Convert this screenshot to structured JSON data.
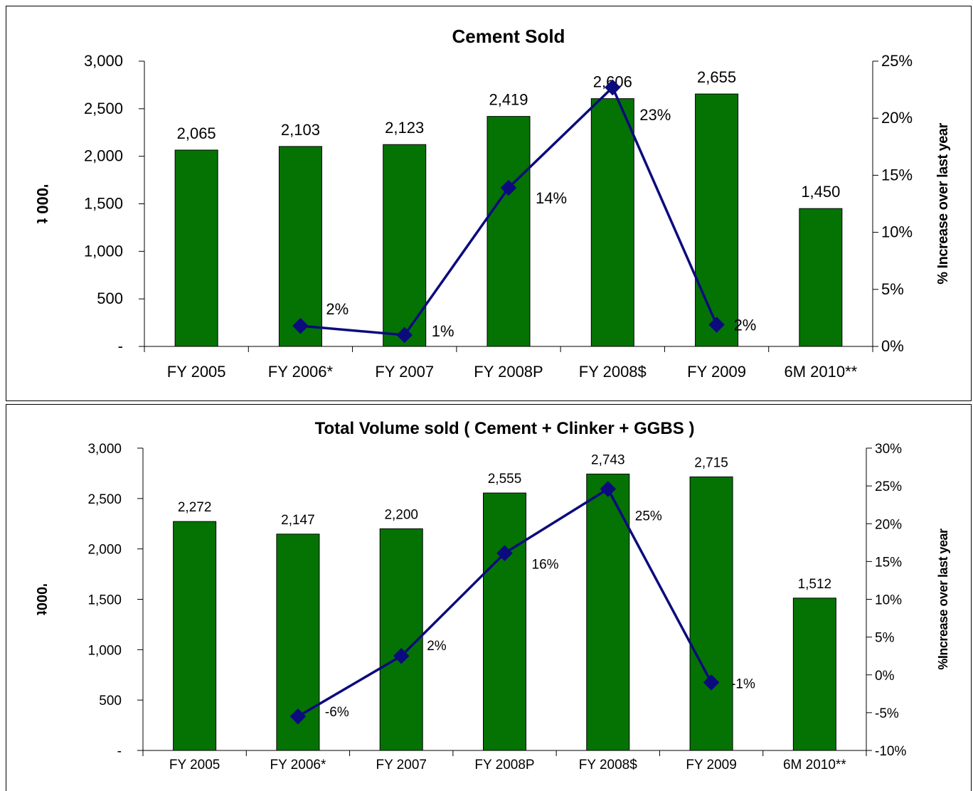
{
  "colors": {
    "bar_fill": "#047304",
    "bar_stroke": "#000000",
    "line": "#0b0b7d"
  },
  "chart_data": [
    {
      "type": "bar",
      "title": "Cement Sold",
      "ylabel": "'000 t",
      "y2label": "% Increase over last year",
      "categories": [
        "FY 2005",
        "FY 2006*",
        "FY 2007",
        "FY 2008P",
        "FY 2008$",
        "FY 2009",
        "6M 2010**"
      ],
      "ylim": [
        0,
        3000
      ],
      "y2lim": [
        0,
        0.25
      ],
      "yticks": [
        0,
        500,
        1000,
        1500,
        2000,
        2500,
        3000
      ],
      "ytick_labels": [
        "-",
        "500",
        "1,000",
        "1,500",
        "2,000",
        "2,500",
        "3,000"
      ],
      "y2ticks": [
        0,
        0.05,
        0.1,
        0.15,
        0.2,
        0.25
      ],
      "y2tick_labels": [
        "0%",
        "5%",
        "10%",
        "15%",
        "20%",
        "25%"
      ],
      "series": [
        {
          "type": "bar",
          "values": [
            2065,
            2103,
            2123,
            2419,
            2606,
            2655,
            1450
          ],
          "labels": [
            "2,065",
            "2,103",
            "2,123",
            "2,419",
            "2,606",
            "2,655",
            "1,450"
          ]
        },
        {
          "type": "line",
          "axis": "right",
          "values": [
            null,
            0.018,
            0.01,
            0.139,
            0.227,
            0.019,
            null
          ],
          "labels": [
            "",
            "2%",
            "1%",
            "14%",
            "23%",
            "2%",
            ""
          ]
        }
      ]
    },
    {
      "type": "bar",
      "title": "Total Volume sold ( Cement + Clinker + GGBS )",
      "ylabel": "'000t",
      "y2label": "%Increase over last year",
      "categories": [
        "FY 2005",
        "FY 2006*",
        "FY 2007",
        "FY 2008P",
        "FY 2008$",
        "FY 2009",
        "6M 2010**"
      ],
      "ylim": [
        0,
        3000
      ],
      "y2lim": [
        -0.1,
        0.3
      ],
      "yticks": [
        0,
        500,
        1000,
        1500,
        2000,
        2500,
        3000
      ],
      "ytick_labels": [
        "-",
        "500",
        "1,000",
        "1,500",
        "2,000",
        "2,500",
        "3,000"
      ],
      "y2ticks": [
        -0.1,
        -0.05,
        0,
        0.05,
        0.1,
        0.15,
        0.2,
        0.25,
        0.3
      ],
      "y2tick_labels": [
        "-10%",
        "-5%",
        "0%",
        "5%",
        "10%",
        "15%",
        "20%",
        "25%",
        "30%"
      ],
      "series": [
        {
          "type": "bar",
          "values": [
            2272,
            2147,
            2200,
            2555,
            2743,
            2715,
            1512
          ],
          "labels": [
            "2,272",
            "2,147",
            "2,200",
            "2,555",
            "2,743",
            "2,715",
            "1,512"
          ]
        },
        {
          "type": "line",
          "axis": "right",
          "values": [
            null,
            -0.055,
            0.025,
            0.161,
            0.246,
            -0.01,
            null
          ],
          "labels": [
            "",
            "-6%",
            "2%",
            "16%",
            "25%",
            "-1%",
            ""
          ]
        }
      ]
    }
  ]
}
